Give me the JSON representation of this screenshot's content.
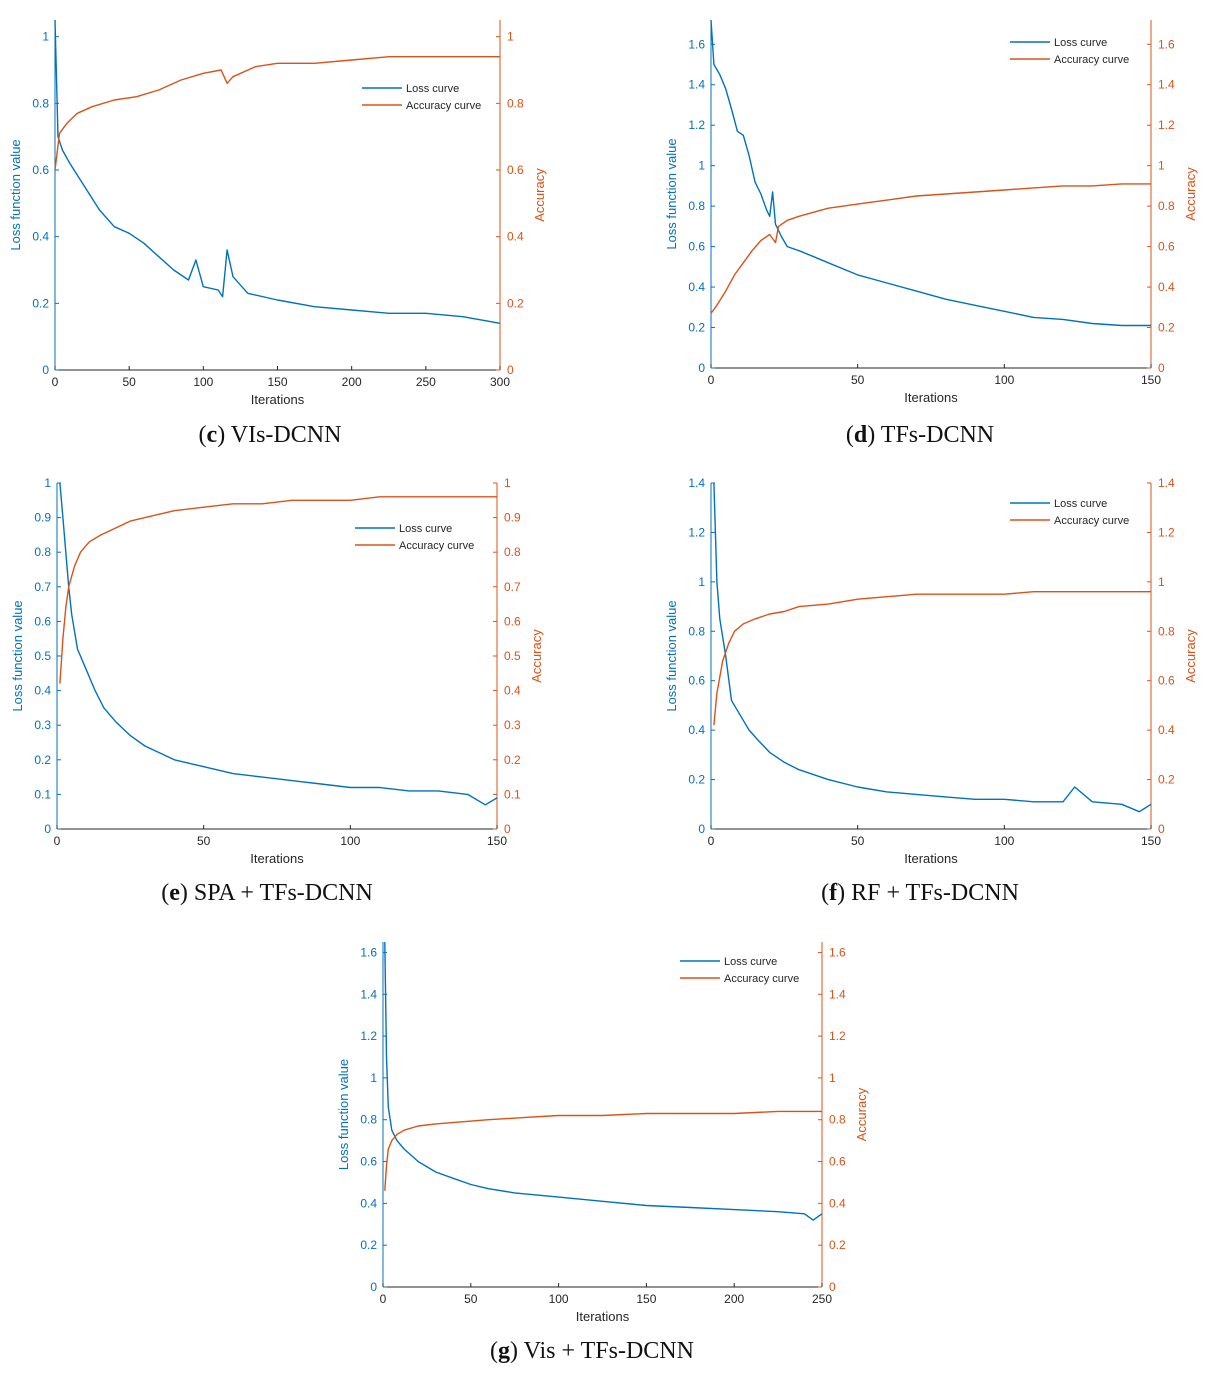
{
  "colors": {
    "loss": "#0072BD",
    "accuracy": "#D95319",
    "axis": "#262626"
  },
  "chart_data": [
    {
      "type": "line",
      "id": "c",
      "caption_letter": "c",
      "caption_text": " VIs-DCNN",
      "xlabel": "Iterations",
      "ylabel": "Loss function value",
      "y2label": "Accuracy",
      "xlim": [
        0,
        300
      ],
      "ylim": [
        0,
        1.05
      ],
      "xticks": [
        0,
        50,
        100,
        150,
        200,
        250,
        300
      ],
      "yticks": [
        0,
        0.2,
        0.4,
        0.6,
        0.8,
        1
      ],
      "legend": [
        "Loss curve",
        "Accuracy curve"
      ],
      "series": [
        {
          "name": "Loss curve",
          "points": [
            [
              0,
              1.05
            ],
            [
              2,
              0.7
            ],
            [
              5,
              0.66
            ],
            [
              10,
              0.62
            ],
            [
              20,
              0.55
            ],
            [
              30,
              0.48
            ],
            [
              40,
              0.43
            ],
            [
              50,
              0.41
            ],
            [
              60,
              0.38
            ],
            [
              70,
              0.34
            ],
            [
              80,
              0.3
            ],
            [
              90,
              0.27
            ],
            [
              95,
              0.33
            ],
            [
              100,
              0.25
            ],
            [
              110,
              0.24
            ],
            [
              113,
              0.22
            ],
            [
              116,
              0.36
            ],
            [
              120,
              0.28
            ],
            [
              130,
              0.23
            ],
            [
              150,
              0.21
            ],
            [
              175,
              0.19
            ],
            [
              200,
              0.18
            ],
            [
              225,
              0.17
            ],
            [
              250,
              0.17
            ],
            [
              275,
              0.16
            ],
            [
              300,
              0.14
            ]
          ]
        },
        {
          "name": "Accuracy curve",
          "points": [
            [
              0,
              0.6
            ],
            [
              3,
              0.71
            ],
            [
              8,
              0.74
            ],
            [
              15,
              0.77
            ],
            [
              25,
              0.79
            ],
            [
              40,
              0.81
            ],
            [
              55,
              0.82
            ],
            [
              70,
              0.84
            ],
            [
              85,
              0.87
            ],
            [
              100,
              0.89
            ],
            [
              112,
              0.9
            ],
            [
              116,
              0.86
            ],
            [
              120,
              0.88
            ],
            [
              135,
              0.91
            ],
            [
              150,
              0.92
            ],
            [
              175,
              0.92
            ],
            [
              200,
              0.93
            ],
            [
              225,
              0.94
            ],
            [
              250,
              0.94
            ],
            [
              275,
              0.94
            ],
            [
              300,
              0.94
            ]
          ]
        }
      ]
    },
    {
      "type": "line",
      "id": "d",
      "caption_letter": "d",
      "caption_text": " TFs-DCNN",
      "xlabel": "Iterations",
      "ylabel": "Loss function value",
      "y2label": "Accuracy",
      "xlim": [
        0,
        150
      ],
      "ylim": [
        0,
        1.72
      ],
      "xticks": [
        0,
        50,
        100,
        150
      ],
      "yticks": [
        0,
        0.2,
        0.4,
        0.6,
        0.8,
        1,
        1.2,
        1.4,
        1.6
      ],
      "legend": [
        "Loss curve",
        "Accuracy curve"
      ],
      "series": [
        {
          "name": "Loss curve",
          "points": [
            [
              0,
              1.72
            ],
            [
              1,
              1.5
            ],
            [
              3,
              1.45
            ],
            [
              5,
              1.38
            ],
            [
              7,
              1.28
            ],
            [
              9,
              1.17
            ],
            [
              11,
              1.15
            ],
            [
              13,
              1.05
            ],
            [
              15,
              0.92
            ],
            [
              17,
              0.86
            ],
            [
              19,
              0.78
            ],
            [
              20,
              0.75
            ],
            [
              21,
              0.87
            ],
            [
              22,
              0.71
            ],
            [
              24,
              0.65
            ],
            [
              26,
              0.6
            ],
            [
              30,
              0.58
            ],
            [
              35,
              0.55
            ],
            [
              40,
              0.52
            ],
            [
              50,
              0.46
            ],
            [
              60,
              0.42
            ],
            [
              70,
              0.38
            ],
            [
              80,
              0.34
            ],
            [
              90,
              0.31
            ],
            [
              100,
              0.28
            ],
            [
              110,
              0.25
            ],
            [
              120,
              0.24
            ],
            [
              130,
              0.22
            ],
            [
              140,
              0.21
            ],
            [
              150,
              0.21
            ]
          ]
        },
        {
          "name": "Accuracy curve",
          "points": [
            [
              0,
              0.27
            ],
            [
              2,
              0.31
            ],
            [
              5,
              0.38
            ],
            [
              8,
              0.46
            ],
            [
              11,
              0.52
            ],
            [
              14,
              0.58
            ],
            [
              17,
              0.63
            ],
            [
              20,
              0.66
            ],
            [
              22,
              0.62
            ],
            [
              23,
              0.7
            ],
            [
              26,
              0.73
            ],
            [
              30,
              0.75
            ],
            [
              35,
              0.77
            ],
            [
              40,
              0.79
            ],
            [
              50,
              0.81
            ],
            [
              60,
              0.83
            ],
            [
              70,
              0.85
            ],
            [
              80,
              0.86
            ],
            [
              90,
              0.87
            ],
            [
              100,
              0.88
            ],
            [
              110,
              0.89
            ],
            [
              120,
              0.9
            ],
            [
              130,
              0.9
            ],
            [
              140,
              0.91
            ],
            [
              150,
              0.91
            ]
          ]
        }
      ]
    },
    {
      "type": "line",
      "id": "e",
      "caption_letter": "e",
      "caption_text": " SPA + TFs-DCNN",
      "xlabel": "Iterations",
      "ylabel": "Loss function value",
      "y2label": "Accuracy",
      "xlim": [
        0,
        150
      ],
      "ylim": [
        0,
        1
      ],
      "xticks": [
        0,
        50,
        100,
        150
      ],
      "yticks": [
        0,
        0.1,
        0.2,
        0.3,
        0.4,
        0.5,
        0.6,
        0.7,
        0.8,
        0.9,
        1
      ],
      "legend": [
        "Loss curve",
        "Accuracy curve"
      ],
      "series": [
        {
          "name": "Loss curve",
          "points": [
            [
              1,
              1.0
            ],
            [
              2,
              0.9
            ],
            [
              3,
              0.8
            ],
            [
              4,
              0.7
            ],
            [
              5,
              0.62
            ],
            [
              7,
              0.52
            ],
            [
              10,
              0.46
            ],
            [
              13,
              0.4
            ],
            [
              16,
              0.35
            ],
            [
              20,
              0.31
            ],
            [
              25,
              0.27
            ],
            [
              30,
              0.24
            ],
            [
              40,
              0.2
            ],
            [
              50,
              0.18
            ],
            [
              60,
              0.16
            ],
            [
              70,
              0.15
            ],
            [
              80,
              0.14
            ],
            [
              90,
              0.13
            ],
            [
              100,
              0.12
            ],
            [
              110,
              0.12
            ],
            [
              120,
              0.11
            ],
            [
              130,
              0.11
            ],
            [
              140,
              0.1
            ],
            [
              146,
              0.07
            ],
            [
              150,
              0.09
            ]
          ]
        },
        {
          "name": "Accuracy curve",
          "points": [
            [
              1,
              0.42
            ],
            [
              2,
              0.55
            ],
            [
              3,
              0.64
            ],
            [
              4,
              0.7
            ],
            [
              6,
              0.76
            ],
            [
              8,
              0.8
            ],
            [
              11,
              0.83
            ],
            [
              15,
              0.85
            ],
            [
              20,
              0.87
            ],
            [
              25,
              0.89
            ],
            [
              30,
              0.9
            ],
            [
              40,
              0.92
            ],
            [
              50,
              0.93
            ],
            [
              60,
              0.94
            ],
            [
              70,
              0.94
            ],
            [
              80,
              0.95
            ],
            [
              90,
              0.95
            ],
            [
              100,
              0.95
            ],
            [
              110,
              0.96
            ],
            [
              120,
              0.96
            ],
            [
              130,
              0.96
            ],
            [
              140,
              0.96
            ],
            [
              150,
              0.96
            ]
          ]
        }
      ]
    },
    {
      "type": "line",
      "id": "f",
      "caption_letter": "f",
      "caption_text": " RF + TFs-DCNN",
      "xlabel": "Iterations",
      "ylabel": "Loss function value",
      "y2label": "Accuracy",
      "xlim": [
        0,
        150
      ],
      "ylim": [
        0,
        1.4
      ],
      "xticks": [
        0,
        50,
        100,
        150
      ],
      "yticks": [
        0,
        0.2,
        0.4,
        0.6,
        0.8,
        1,
        1.2,
        1.4
      ],
      "legend": [
        "Loss curve",
        "Accuracy curve"
      ],
      "series": [
        {
          "name": "Loss curve",
          "points": [
            [
              1,
              1.4
            ],
            [
              2,
              1.0
            ],
            [
              3,
              0.85
            ],
            [
              5,
              0.7
            ],
            [
              7,
              0.52
            ],
            [
              10,
              0.46
            ],
            [
              13,
              0.4
            ],
            [
              16,
              0.36
            ],
            [
              20,
              0.31
            ],
            [
              25,
              0.27
            ],
            [
              30,
              0.24
            ],
            [
              40,
              0.2
            ],
            [
              50,
              0.17
            ],
            [
              60,
              0.15
            ],
            [
              70,
              0.14
            ],
            [
              80,
              0.13
            ],
            [
              90,
              0.12
            ],
            [
              100,
              0.12
            ],
            [
              110,
              0.11
            ],
            [
              120,
              0.11
            ],
            [
              124,
              0.17
            ],
            [
              130,
              0.11
            ],
            [
              140,
              0.1
            ],
            [
              146,
              0.07
            ],
            [
              150,
              0.1
            ]
          ]
        },
        {
          "name": "Accuracy curve",
          "points": [
            [
              1,
              0.42
            ],
            [
              2,
              0.55
            ],
            [
              4,
              0.68
            ],
            [
              6,
              0.75
            ],
            [
              8,
              0.8
            ],
            [
              11,
              0.83
            ],
            [
              15,
              0.85
            ],
            [
              20,
              0.87
            ],
            [
              25,
              0.88
            ],
            [
              30,
              0.9
            ],
            [
              40,
              0.91
            ],
            [
              50,
              0.93
            ],
            [
              60,
              0.94
            ],
            [
              70,
              0.95
            ],
            [
              80,
              0.95
            ],
            [
              90,
              0.95
            ],
            [
              100,
              0.95
            ],
            [
              110,
              0.96
            ],
            [
              120,
              0.96
            ],
            [
              130,
              0.96
            ],
            [
              140,
              0.96
            ],
            [
              150,
              0.96
            ]
          ]
        }
      ]
    },
    {
      "type": "line",
      "id": "g",
      "caption_letter": "g",
      "caption_text": " Vis + TFs-DCNN",
      "xlabel": "Iterations",
      "ylabel": "Loss function value",
      "y2label": "Accuracy",
      "xlim": [
        0,
        250
      ],
      "ylim": [
        0,
        1.65
      ],
      "xticks": [
        0,
        50,
        100,
        150,
        200,
        250
      ],
      "yticks": [
        0,
        0.2,
        0.4,
        0.6,
        0.8,
        1,
        1.2,
        1.4,
        1.6
      ],
      "legend": [
        "Loss curve",
        "Accuracy curve"
      ],
      "series": [
        {
          "name": "Loss curve",
          "points": [
            [
              1,
              1.65
            ],
            [
              2,
              1.1
            ],
            [
              3,
              0.86
            ],
            [
              5,
              0.75
            ],
            [
              8,
              0.7
            ],
            [
              12,
              0.66
            ],
            [
              20,
              0.6
            ],
            [
              30,
              0.55
            ],
            [
              40,
              0.52
            ],
            [
              50,
              0.49
            ],
            [
              60,
              0.47
            ],
            [
              75,
              0.45
            ],
            [
              100,
              0.43
            ],
            [
              125,
              0.41
            ],
            [
              150,
              0.39
            ],
            [
              175,
              0.38
            ],
            [
              200,
              0.37
            ],
            [
              225,
              0.36
            ],
            [
              240,
              0.35
            ],
            [
              245,
              0.32
            ],
            [
              250,
              0.35
            ]
          ]
        },
        {
          "name": "Accuracy curve",
          "points": [
            [
              1,
              0.46
            ],
            [
              2,
              0.58
            ],
            [
              3,
              0.66
            ],
            [
              5,
              0.7
            ],
            [
              8,
              0.73
            ],
            [
              12,
              0.75
            ],
            [
              20,
              0.77
            ],
            [
              30,
              0.78
            ],
            [
              45,
              0.79
            ],
            [
              60,
              0.8
            ],
            [
              80,
              0.81
            ],
            [
              100,
              0.82
            ],
            [
              125,
              0.82
            ],
            [
              150,
              0.83
            ],
            [
              175,
              0.83
            ],
            [
              200,
              0.83
            ],
            [
              225,
              0.84
            ],
            [
              250,
              0.84
            ]
          ]
        }
      ]
    }
  ]
}
